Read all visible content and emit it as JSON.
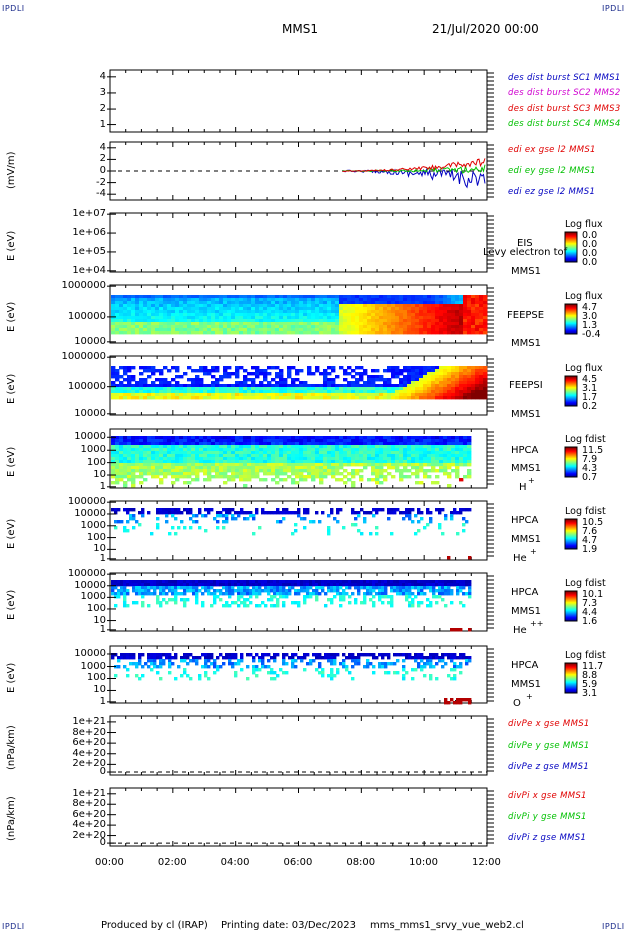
{
  "corners": {
    "tl": "IPDLI",
    "tr": "IPDLI",
    "bl": "IPDLI",
    "br": "IPDLI"
  },
  "header": {
    "title": "MMS1",
    "date": "21/Jul/2020 00:00"
  },
  "footer": {
    "produced": "Produced by cl (IRAP)",
    "printing": "Printing date: 03/Dec/2023",
    "script": "mms_mms1_srvy_vue_web2.cl"
  },
  "colors": {
    "red": "#e00000",
    "magenta": "#d000d0",
    "green": "#00c000",
    "blue": "#0000c0"
  },
  "chart_data": [
    {
      "type": "line",
      "panel": "dist",
      "y_ticks": [
        "4",
        "3",
        "2",
        "1"
      ],
      "ylim": [
        0.8,
        4.3
      ],
      "series": [
        {
          "name": "des dist burst SC1 MMS1",
          "color": "#0000c0"
        },
        {
          "name": "des dist burst SC2 MMS2",
          "color": "#d000d0"
        },
        {
          "name": "des dist burst SC3 MMS3",
          "color": "#e00000"
        },
        {
          "name": "des dist burst SC4 MMS4",
          "color": "#00c000"
        }
      ]
    },
    {
      "type": "line",
      "panel": "edi",
      "ylabel": "(mV/m)",
      "y_ticks": [
        "4",
        "2",
        "0",
        "-2",
        "-4"
      ],
      "ylim": [
        -5,
        5
      ],
      "series": [
        {
          "name": "edi ex gse l2 MMS1",
          "color": "#e00000"
        },
        {
          "name": "edi ey gse l2 MMS1",
          "color": "#00c000"
        },
        {
          "name": "edi ez gse l2 MMS1",
          "color": "#0000c0"
        }
      ]
    },
    {
      "type": "heatmap",
      "panel": "eis",
      "ylabel": "E (eV)",
      "y_ticks": [
        "1e+07",
        "1e+06",
        "1e+05",
        "1e+04"
      ],
      "instrument": "EIS",
      "extra": "Levy electron tof",
      "sc": "MMS1",
      "cb_title": "Log flux",
      "cb_values": [
        "0.0",
        "0.0",
        "0.0",
        "0.0"
      ]
    },
    {
      "type": "heatmap",
      "panel": "feepse",
      "ylabel": "E (eV)",
      "y_ticks": [
        "1000000",
        "100000",
        "10000"
      ],
      "instrument": "FEEPSE",
      "sc": "MMS1",
      "cb_title": "Log flux",
      "cb_values": [
        "4.7",
        "3.0",
        "1.3",
        "-0.4"
      ]
    },
    {
      "type": "heatmap",
      "panel": "feepsi",
      "ylabel": "E (eV)",
      "y_ticks": [
        "1000000",
        "100000",
        "10000"
      ],
      "instrument": "FEEPSI",
      "sc": "MMS1",
      "cb_title": "Log flux",
      "cb_values": [
        "4.5",
        "3.1",
        "1.7",
        "0.2"
      ]
    },
    {
      "type": "heatmap",
      "panel": "hpca_h",
      "ylabel": "E (eV)",
      "y_ticks": [
        "10000",
        "1000",
        "100",
        "10",
        "1"
      ],
      "instrument": "HPCA",
      "sc": "MMS1",
      "species": "H",
      "charge": "+",
      "cb_title": "Log fdist",
      "cb_values": [
        "11.5",
        "7.9",
        "4.3",
        "0.7"
      ]
    },
    {
      "type": "heatmap",
      "panel": "hpca_he",
      "ylabel": "E (eV)",
      "y_ticks": [
        "100000",
        "10000",
        "1000",
        "100",
        "10",
        "1"
      ],
      "instrument": "HPCA",
      "sc": "MMS1",
      "species": "He",
      "charge": "+",
      "cb_title": "Log fdist",
      "cb_values": [
        "10.5",
        "7.6",
        "4.7",
        "1.9"
      ]
    },
    {
      "type": "heatmap",
      "panel": "hpca_hepp",
      "ylabel": "E (eV)",
      "y_ticks": [
        "100000",
        "10000",
        "1000",
        "100",
        "10",
        "1"
      ],
      "instrument": "HPCA",
      "sc": "MMS1",
      "species": "He",
      "charge": "++",
      "cb_title": "Log fdist",
      "cb_values": [
        "10.1",
        "7.3",
        "4.4",
        "1.6"
      ]
    },
    {
      "type": "heatmap",
      "panel": "hpca_o",
      "ylabel": "E (eV)",
      "y_ticks": [
        "10000",
        "1000",
        "100",
        "10",
        "1"
      ],
      "instrument": "HPCA",
      "sc": "MMS1",
      "species": "O",
      "charge": "+",
      "cb_title": "Log fdist",
      "cb_values": [
        "11.7",
        "8.8",
        "5.9",
        "3.1"
      ]
    },
    {
      "type": "line",
      "panel": "divpe",
      "ylabel": "(nPa/km)",
      "y_ticks": [
        "1e+21",
        "8e+20",
        "6e+20",
        "4e+20",
        "2e+20",
        "0"
      ],
      "ylim": [
        0,
        1e+21
      ],
      "series": [
        {
          "name": "divPe x gse MMS1",
          "color": "#e00000"
        },
        {
          "name": "divPe y gse MMS1",
          "color": "#00c000"
        },
        {
          "name": "divPe z gse MMS1",
          "color": "#0000c0"
        }
      ]
    },
    {
      "type": "line",
      "panel": "divpi",
      "ylabel": "(nPa/km)",
      "y_ticks": [
        "1e+21",
        "8e+20",
        "6e+20",
        "4e+20",
        "2e+20",
        "0"
      ],
      "ylim": [
        0,
        1e+21
      ],
      "series": [
        {
          "name": "divPi x gse MMS1",
          "color": "#e00000"
        },
        {
          "name": "divPi y gse MMS1",
          "color": "#00c000"
        },
        {
          "name": "divPi z gse MMS1",
          "color": "#0000c0"
        }
      ]
    }
  ],
  "x_axis": {
    "ticks": [
      "00:00",
      "02:00",
      "04:00",
      "06:00",
      "08:00",
      "10:00",
      "12:00"
    ],
    "xlim": [
      0,
      12
    ],
    "unit": "hours"
  }
}
